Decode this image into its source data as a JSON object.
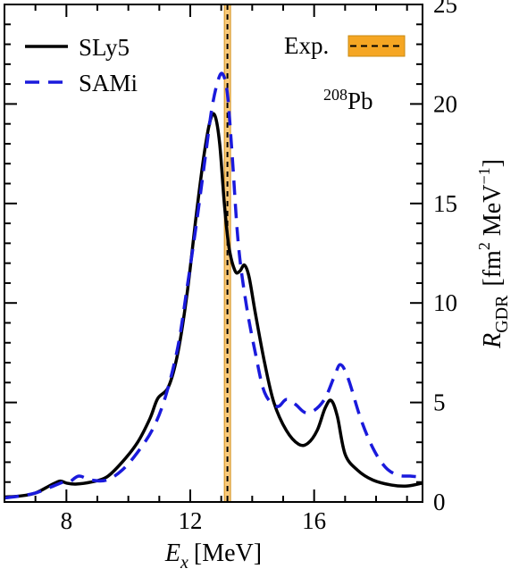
{
  "chart_data": {
    "type": "line",
    "xlabel": {
      "var": "E",
      "sub": "x",
      "unit": "[MeV]"
    },
    "ylabel": {
      "var": "R",
      "sub": "GDR",
      "unit": "[fm",
      "pow2": "2",
      "mid": " MeV",
      "powneg": "−1",
      "close": "]"
    },
    "xlim": [
      6.0,
      19.5
    ],
    "ylim": [
      0,
      25
    ],
    "xticks": [
      8,
      12,
      16
    ],
    "yticks": [
      0,
      5,
      10,
      15,
      20,
      25
    ],
    "y_axis_side": "right",
    "annotation": {
      "sup": "208",
      "text": "Pb"
    },
    "exp": {
      "label": "Exp.",
      "center": 13.2,
      "band": [
        13.1,
        13.3
      ],
      "color": "#f5a623"
    },
    "legend_position": "top-left",
    "series": [
      {
        "name": "SLy5",
        "color": "#000000",
        "dash": "solid",
        "points": [
          [
            6.0,
            0.25
          ],
          [
            6.5,
            0.3
          ],
          [
            7.0,
            0.45
          ],
          [
            7.5,
            0.85
          ],
          [
            7.8,
            1.05
          ],
          [
            8.0,
            0.95
          ],
          [
            8.3,
            0.9
          ],
          [
            8.8,
            1.0
          ],
          [
            9.3,
            1.25
          ],
          [
            9.8,
            2.0
          ],
          [
            10.3,
            3.0
          ],
          [
            10.7,
            4.2
          ],
          [
            10.95,
            5.2
          ],
          [
            11.3,
            5.8
          ],
          [
            11.6,
            7.5
          ],
          [
            11.9,
            10.5
          ],
          [
            12.2,
            14.5
          ],
          [
            12.45,
            17.5
          ],
          [
            12.65,
            19.2
          ],
          [
            12.8,
            19.4
          ],
          [
            12.95,
            18.0
          ],
          [
            13.1,
            15.0
          ],
          [
            13.25,
            12.8
          ],
          [
            13.45,
            11.6
          ],
          [
            13.6,
            11.6
          ],
          [
            13.75,
            11.9
          ],
          [
            13.9,
            11.3
          ],
          [
            14.1,
            9.5
          ],
          [
            14.4,
            7.0
          ],
          [
            14.7,
            5.0
          ],
          [
            15.1,
            3.6
          ],
          [
            15.5,
            2.9
          ],
          [
            15.8,
            2.95
          ],
          [
            16.1,
            3.6
          ],
          [
            16.35,
            4.7
          ],
          [
            16.55,
            5.1
          ],
          [
            16.75,
            4.3
          ],
          [
            17.0,
            2.4
          ],
          [
            17.4,
            1.6
          ],
          [
            17.9,
            1.1
          ],
          [
            18.5,
            0.85
          ],
          [
            19.0,
            0.8
          ],
          [
            19.5,
            0.95
          ]
        ]
      },
      {
        "name": "SAMi",
        "color": "#1a1adc",
        "dash": "dashed",
        "points": [
          [
            6.0,
            0.2
          ],
          [
            6.5,
            0.3
          ],
          [
            7.0,
            0.45
          ],
          [
            7.5,
            0.75
          ],
          [
            7.9,
            1.0
          ],
          [
            8.1,
            1.0
          ],
          [
            8.4,
            1.3
          ],
          [
            8.8,
            1.1
          ],
          [
            9.3,
            1.1
          ],
          [
            9.8,
            1.6
          ],
          [
            10.3,
            2.5
          ],
          [
            10.8,
            3.7
          ],
          [
            11.2,
            5.3
          ],
          [
            11.6,
            7.8
          ],
          [
            11.9,
            10.8
          ],
          [
            12.2,
            14.0
          ],
          [
            12.5,
            17.5
          ],
          [
            12.7,
            19.8
          ],
          [
            12.9,
            21.2
          ],
          [
            13.05,
            21.5
          ],
          [
            13.2,
            20.5
          ],
          [
            13.35,
            17.5
          ],
          [
            13.55,
            13.0
          ],
          [
            13.8,
            10.0
          ],
          [
            14.1,
            7.5
          ],
          [
            14.4,
            5.5
          ],
          [
            14.8,
            4.8
          ],
          [
            15.1,
            5.15
          ],
          [
            15.4,
            4.9
          ],
          [
            15.7,
            4.5
          ],
          [
            16.0,
            4.6
          ],
          [
            16.35,
            5.2
          ],
          [
            16.65,
            6.3
          ],
          [
            16.85,
            6.9
          ],
          [
            17.1,
            6.2
          ],
          [
            17.5,
            4.2
          ],
          [
            17.9,
            2.7
          ],
          [
            18.3,
            1.75
          ],
          [
            18.7,
            1.35
          ],
          [
            19.1,
            1.3
          ],
          [
            19.5,
            1.25
          ]
        ]
      }
    ]
  }
}
